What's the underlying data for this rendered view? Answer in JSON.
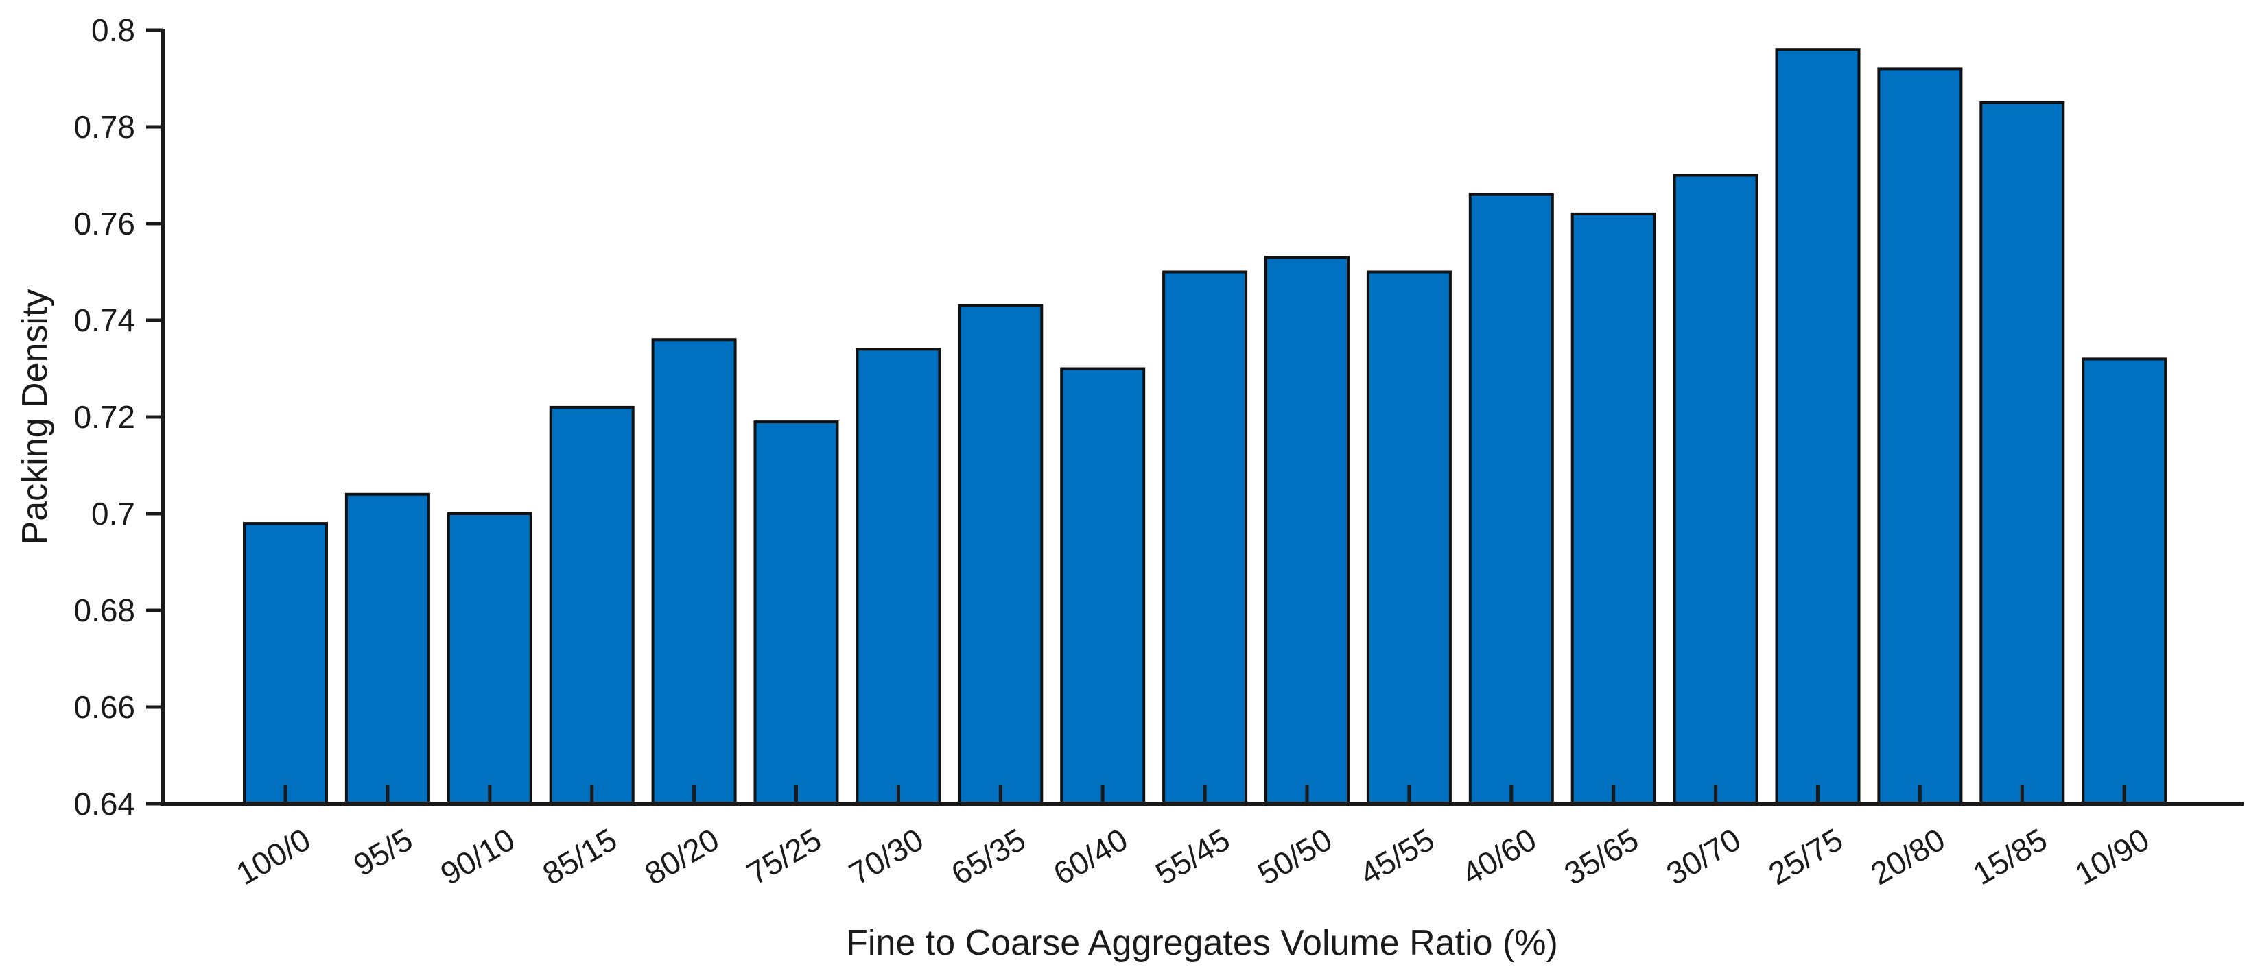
{
  "chart_data": {
    "type": "bar",
    "xlabel": "Fine to Coarse Aggregates Volume Ratio (%)",
    "ylabel": "Packing Density",
    "categories": [
      "100/0",
      "95/5",
      "90/10",
      "85/15",
      "80/20",
      "75/25",
      "70/30",
      "65/35",
      "60/40",
      "55/45",
      "50/50",
      "45/55",
      "40/60",
      "35/65",
      "30/70",
      "25/75",
      "20/80",
      "15/85",
      "10/90"
    ],
    "values": [
      0.698,
      0.704,
      0.7,
      0.722,
      0.736,
      0.719,
      0.734,
      0.743,
      0.73,
      0.75,
      0.753,
      0.75,
      0.766,
      0.762,
      0.77,
      0.796,
      0.792,
      0.785,
      0.732
    ],
    "ylim": [
      0.64,
      0.8
    ],
    "yticks": [
      "0.64",
      "0.66",
      "0.68",
      "0.7",
      "0.72",
      "0.74",
      "0.76",
      "0.78",
      "0.8"
    ],
    "bar_color": "#0070c0",
    "grid": false,
    "legend": "none"
  }
}
